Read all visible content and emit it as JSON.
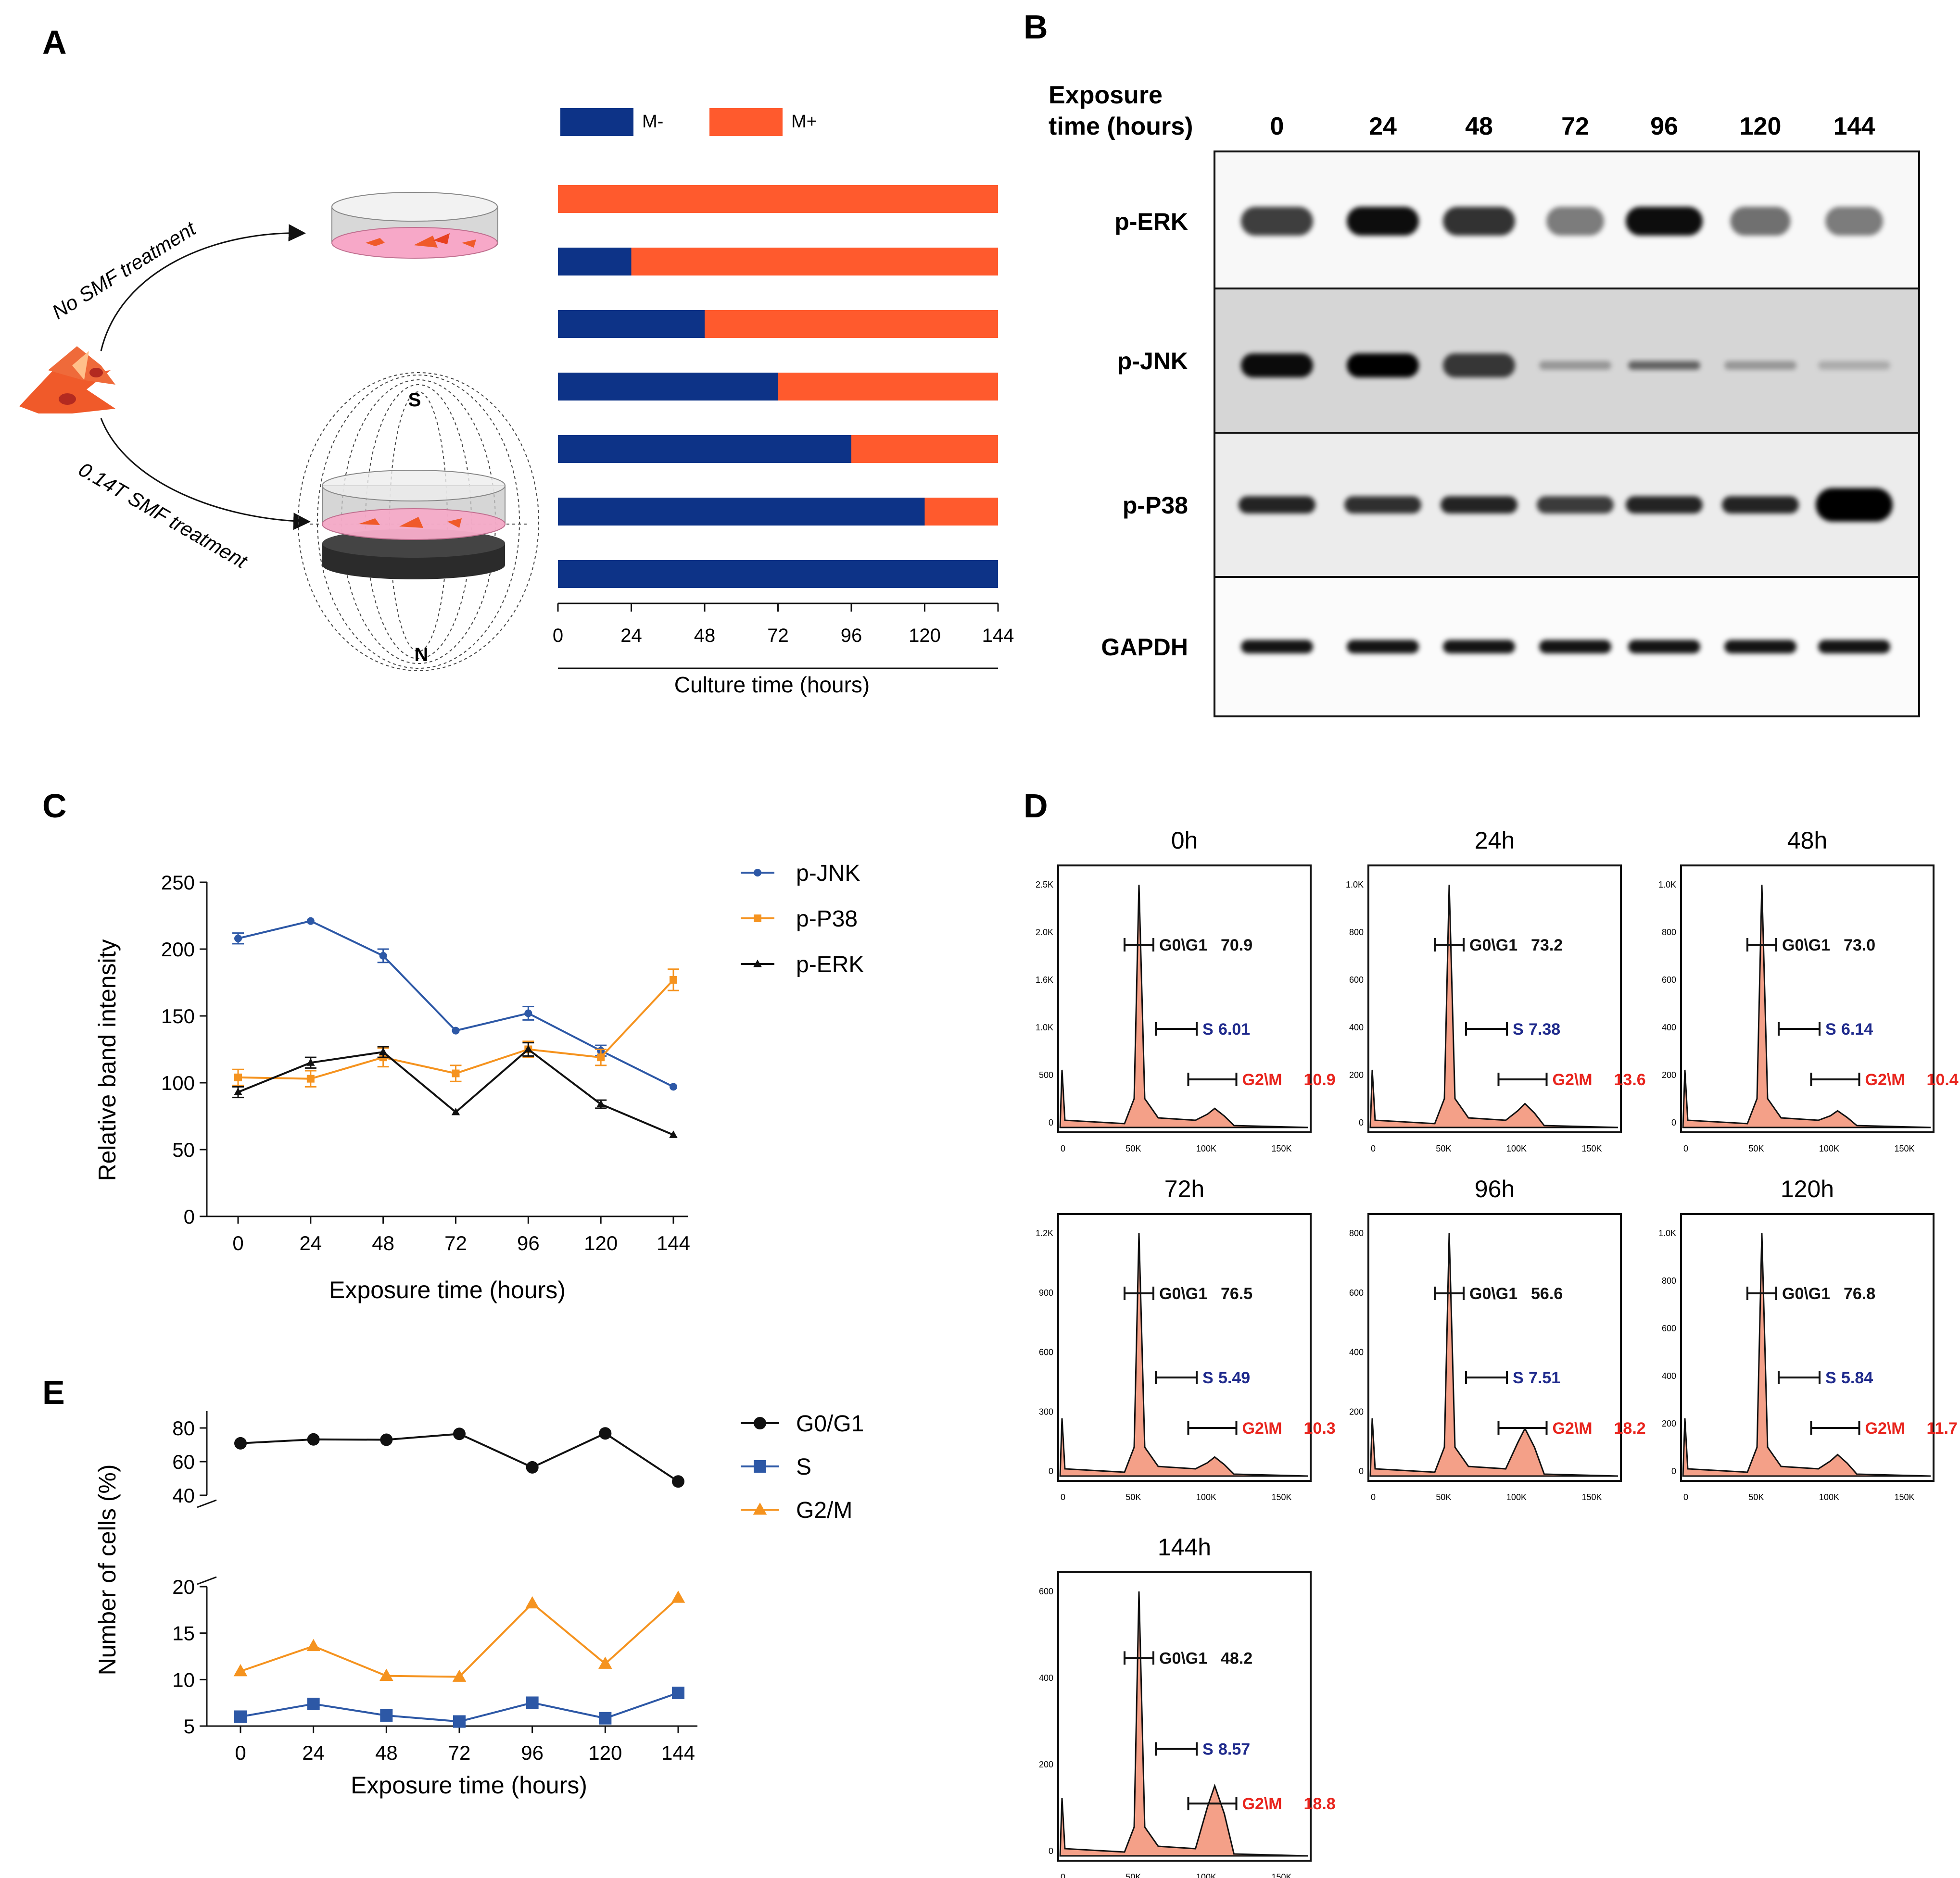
{
  "panels": {
    "A": "A",
    "B": "B",
    "C": "C",
    "D": "D",
    "E": "E"
  },
  "colors": {
    "m_minus": "#0d3387",
    "m_plus": "#ff5a2d",
    "p_jnk": "#2d58a6",
    "p_p38": "#f5931f",
    "p_erk": "#111111",
    "g0g1": "#111111",
    "s": "#2d58a6",
    "g2m": "#f5931f",
    "histogram_fill": "#f4a088",
    "gate_s_text": "#1f2a8c",
    "gate_g2m_text": "#e8241d"
  },
  "panelA": {
    "arrow_top_label": "No SMF treatment",
    "arrow_bottom_label": "0.14T SMF treatment",
    "pole_s": "S",
    "pole_n": "N",
    "chart_data": {
      "type": "bar",
      "orientation": "horizontal-stacked",
      "legend": [
        "M-",
        "M+"
      ],
      "legend_position": "top",
      "xlabel": "Culture time (hours)",
      "xlim": [
        0,
        144
      ],
      "xticks": [
        0,
        24,
        48,
        72,
        96,
        120,
        144
      ],
      "series": [
        {
          "name": "M-",
          "values": [
            0,
            24,
            48,
            72,
            96,
            120,
            144
          ]
        },
        {
          "name": "M+",
          "values": [
            144,
            120,
            96,
            72,
            48,
            24,
            0
          ]
        }
      ]
    }
  },
  "panelB": {
    "header_line1": "Exposure",
    "header_line2": "time (hours)",
    "lanes": [
      "0",
      "24",
      "48",
      "72",
      "96",
      "120",
      "144"
    ],
    "rows": [
      "p-ERK",
      "p-JNK",
      "p-P38",
      "GAPDH"
    ]
  },
  "panelC": {
    "chart_data": {
      "type": "line",
      "xlabel": "Exposure time (hours)",
      "ylabel": "Relative band intensity",
      "x": [
        0,
        24,
        48,
        72,
        96,
        120,
        144
      ],
      "xticks": [
        0,
        24,
        48,
        72,
        96,
        120,
        144
      ],
      "ylim": [
        0,
        250
      ],
      "yticks": [
        0,
        50,
        100,
        150,
        200,
        250
      ],
      "legend_position": "top-right",
      "series": [
        {
          "name": "p-JNK",
          "values": [
            208,
            221,
            195,
            139,
            152,
            124,
            97
          ],
          "error": [
            4,
            0,
            5,
            0,
            5,
            4,
            0
          ],
          "marker": "circle"
        },
        {
          "name": "p-P38",
          "values": [
            104,
            103,
            119,
            107,
            125,
            119,
            177
          ],
          "error": [
            6,
            6,
            7,
            6,
            6,
            6,
            8
          ],
          "marker": "square"
        },
        {
          "name": "p-ERK",
          "values": [
            93,
            115,
            123,
            78,
            125,
            84,
            61
          ],
          "error": [
            4,
            4,
            4,
            0,
            5,
            3,
            0
          ],
          "marker": "triangle"
        }
      ]
    }
  },
  "panelD": {
    "chart_data": [
      {
        "type": "area",
        "title": "0h",
        "yticks": [
          "0",
          "500",
          "1.0K",
          "1.6K",
          "2.0K",
          "2.5K"
        ],
        "xticks": [
          "0",
          "50K",
          "100K",
          "150K"
        ],
        "gates": {
          "g0g1": "70.9",
          "s": "6.01",
          "g2m": "10.9"
        }
      },
      {
        "type": "area",
        "title": "24h",
        "yticks": [
          "0",
          "200",
          "400",
          "600",
          "800",
          "1.0K"
        ],
        "xticks": [
          "0",
          "50K",
          "100K",
          "150K"
        ],
        "gates": {
          "g0g1": "73.2",
          "s": "7.38",
          "g2m": "13.6"
        }
      },
      {
        "type": "area",
        "title": "48h",
        "yticks": [
          "0",
          "200",
          "400",
          "600",
          "800",
          "1.0K"
        ],
        "xticks": [
          "0",
          "50K",
          "100K",
          "150K"
        ],
        "gates": {
          "g0g1": "73.0",
          "s": "6.14",
          "g2m": "10.4"
        }
      },
      {
        "type": "area",
        "title": "72h",
        "yticks": [
          "0",
          "300",
          "600",
          "900",
          "1.2K"
        ],
        "xticks": [
          "0",
          "50K",
          "100K",
          "150K"
        ],
        "gates": {
          "g0g1": "76.5",
          "s": "5.49",
          "g2m": "10.3"
        }
      },
      {
        "type": "area",
        "title": "96h",
        "yticks": [
          "0",
          "200",
          "400",
          "600",
          "800"
        ],
        "xticks": [
          "0",
          "50K",
          "100K",
          "150K"
        ],
        "gates": {
          "g0g1": "56.6",
          "s": "7.51",
          "g2m": "18.2"
        }
      },
      {
        "type": "area",
        "title": "120h",
        "yticks": [
          "0",
          "200",
          "400",
          "600",
          "800",
          "1.0K"
        ],
        "xticks": [
          "0",
          "50K",
          "100K",
          "150K"
        ],
        "gates": {
          "g0g1": "76.8",
          "s": "5.84",
          "g2m": "11.7"
        }
      },
      {
        "type": "area",
        "title": "144h",
        "yticks": [
          "0",
          "200",
          "400",
          "600"
        ],
        "xticks": [
          "0",
          "50K",
          "100K",
          "150K"
        ],
        "gates": {
          "g0g1": "48.2",
          "s": "8.57",
          "g2m": "18.8"
        }
      }
    ],
    "gate_labels": {
      "g0g1": "G0\\G1",
      "s": "S",
      "g2m": "G2\\M"
    }
  },
  "panelE": {
    "chart_data": {
      "type": "line",
      "xlabel": "Exposure time (hours)",
      "ylabel": "Number of cells (%)",
      "x": [
        0,
        24,
        48,
        72,
        96,
        120,
        144
      ],
      "xticks": [
        0,
        24,
        48,
        72,
        96,
        120,
        144
      ],
      "y_axis_break": [
        20,
        40
      ],
      "yticks_upper": [
        40,
        60,
        80
      ],
      "yticks_lower": [
        5,
        10,
        15,
        20
      ],
      "legend_position": "top-right",
      "series": [
        {
          "name": "G0/G1",
          "values": [
            70.9,
            73.2,
            73.0,
            76.5,
            56.6,
            76.8,
            48.2
          ],
          "marker": "circle"
        },
        {
          "name": "S",
          "values": [
            6.01,
            7.38,
            6.14,
            5.49,
            7.51,
            5.84,
            8.57
          ],
          "marker": "square"
        },
        {
          "name": "G2/M",
          "values": [
            10.9,
            13.6,
            10.4,
            10.3,
            18.2,
            11.7,
            18.8
          ],
          "marker": "triangle"
        }
      ]
    }
  }
}
